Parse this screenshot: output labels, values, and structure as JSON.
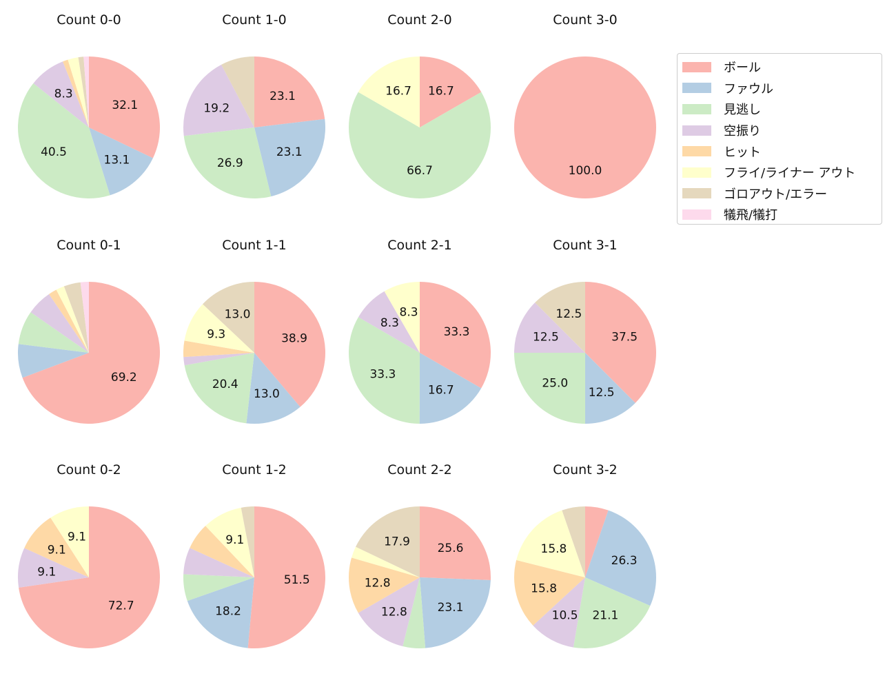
{
  "chart_data": {
    "type": "pie",
    "start_angle": 90,
    "direction": "clockwise",
    "legend_placement": "top-right",
    "categories": [
      "ボール",
      "ファウル",
      "見逃し",
      "空振り",
      "ヒット",
      "フライ/ライナー アウト",
      "ゴロアウト/エラー",
      "犠飛/犠打"
    ],
    "colors": [
      "#fbb4ae",
      "#b3cde3",
      "#ccebc5",
      "#decbe4",
      "#fed9a6",
      "#ffffcc",
      "#e5d8bd",
      "#fddaec"
    ],
    "charts": [
      {
        "title": "Count 0-0",
        "values": [
          32.1,
          13.1,
          40.5,
          8.3,
          1.2,
          2.4,
          1.2,
          1.2
        ]
      },
      {
        "title": "Count 1-0",
        "values": [
          23.1,
          23.1,
          26.9,
          19.2,
          0,
          0,
          7.7,
          0
        ]
      },
      {
        "title": "Count 2-0",
        "values": [
          16.7,
          0,
          66.7,
          0,
          0,
          16.7,
          0,
          0
        ]
      },
      {
        "title": "Count 3-0",
        "values": [
          100.0,
          0,
          0,
          0,
          0,
          0,
          0,
          0
        ]
      },
      {
        "title": "Count 0-1",
        "values": [
          69.2,
          7.7,
          7.7,
          5.8,
          1.9,
          1.9,
          3.8,
          1.9
        ]
      },
      {
        "title": "Count 1-1",
        "values": [
          38.9,
          13.0,
          20.4,
          1.9,
          3.7,
          9.3,
          13.0,
          0
        ]
      },
      {
        "title": "Count 2-1",
        "values": [
          33.3,
          16.7,
          33.3,
          8.3,
          0,
          8.3,
          0,
          0
        ]
      },
      {
        "title": "Count 3-1",
        "values": [
          37.5,
          12.5,
          25.0,
          12.5,
          0,
          0,
          12.5,
          0
        ]
      },
      {
        "title": "Count 0-2",
        "values": [
          72.7,
          0,
          0,
          9.1,
          9.1,
          9.1,
          0,
          0
        ]
      },
      {
        "title": "Count 1-2",
        "values": [
          51.5,
          18.2,
          6.1,
          6.1,
          6.1,
          9.1,
          3.0,
          0
        ]
      },
      {
        "title": "Count 2-2",
        "values": [
          25.6,
          23.1,
          5.1,
          12.8,
          12.8,
          2.6,
          17.9,
          0
        ]
      },
      {
        "title": "Count 3-2",
        "values": [
          5.3,
          26.3,
          21.1,
          10.5,
          15.8,
          15.8,
          5.3,
          0
        ]
      }
    ]
  }
}
